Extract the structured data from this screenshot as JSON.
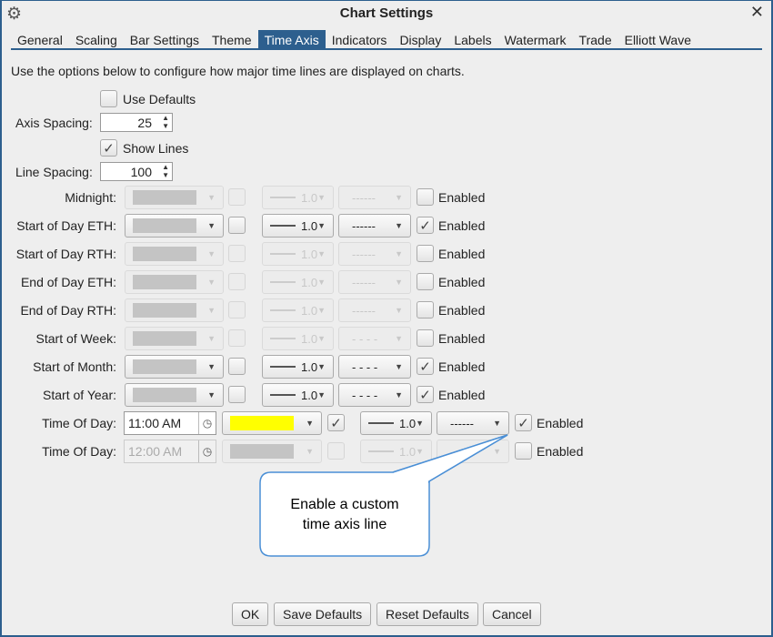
{
  "window": {
    "title": "Chart Settings",
    "gear_icon": "gear-icon",
    "close_icon": "close-icon",
    "close_glyph": "✕"
  },
  "tabs": [
    {
      "label": "General"
    },
    {
      "label": "Scaling"
    },
    {
      "label": "Bar Settings"
    },
    {
      "label": "Theme"
    },
    {
      "label": "Time Axis",
      "active": true
    },
    {
      "label": "Indicators"
    },
    {
      "label": "Display"
    },
    {
      "label": "Labels"
    },
    {
      "label": "Watermark"
    },
    {
      "label": "Trade"
    },
    {
      "label": "Elliott Wave"
    }
  ],
  "description": "Use the options below to configure how major time lines are displayed on charts.",
  "use_defaults": {
    "label": "Use Defaults",
    "checked": false
  },
  "axis_spacing": {
    "label": "Axis Spacing:",
    "value": "25"
  },
  "show_lines": {
    "label": "Show Lines",
    "checked": true
  },
  "line_spacing": {
    "label": "Line Spacing:",
    "value": "100"
  },
  "enabled_label": "Enabled",
  "rows": [
    {
      "label": "Midnight:",
      "active": false,
      "enabled": false,
      "width": "1.0",
      "style": "------",
      "color": "#c4c4c4",
      "extra": false
    },
    {
      "label": "Start of Day ETH:",
      "active": true,
      "enabled": true,
      "width": "1.0",
      "style": "------",
      "color": "#c4c4c4",
      "extra": false
    },
    {
      "label": "Start of Day RTH:",
      "active": false,
      "enabled": false,
      "width": "1.0",
      "style": "------",
      "color": "#c4c4c4",
      "extra": false
    },
    {
      "label": "End of Day ETH:",
      "active": false,
      "enabled": false,
      "width": "1.0",
      "style": "------",
      "color": "#c4c4c4",
      "extra": false
    },
    {
      "label": "End of Day RTH:",
      "active": false,
      "enabled": false,
      "width": "1.0",
      "style": "------",
      "color": "#c4c4c4",
      "extra": false
    },
    {
      "label": "Start of Week:",
      "active": false,
      "enabled": false,
      "width": "1.0",
      "style": "- - - -",
      "color": "#c4c4c4",
      "extra": false
    },
    {
      "label": "Start of Month:",
      "active": true,
      "enabled": true,
      "width": "1.0",
      "style": "- - - -",
      "color": "#c4c4c4",
      "extra": false
    },
    {
      "label": "Start of Year:",
      "active": true,
      "enabled": true,
      "width": "1.0",
      "style": "- - - -",
      "color": "#c4c4c4",
      "extra": false
    },
    {
      "label": "Time Of Day:",
      "time": "11:00 AM",
      "active": true,
      "enabled": true,
      "width": "1.0",
      "style": "------",
      "color": "#ffff00",
      "extra": true
    },
    {
      "label": "Time Of Day:",
      "time": "12:00 AM",
      "active": false,
      "enabled": false,
      "width": "1.0",
      "style": "------",
      "color": "#c4c4c4",
      "extra": false
    }
  ],
  "callout": {
    "text": "Enable a custom time axis line",
    "line1": "Enable a custom",
    "line2": "time axis line",
    "color": "#4a8fd6"
  },
  "buttons": {
    "ok": "OK",
    "save": "Save Defaults",
    "reset": "Reset Defaults",
    "cancel": "Cancel"
  }
}
